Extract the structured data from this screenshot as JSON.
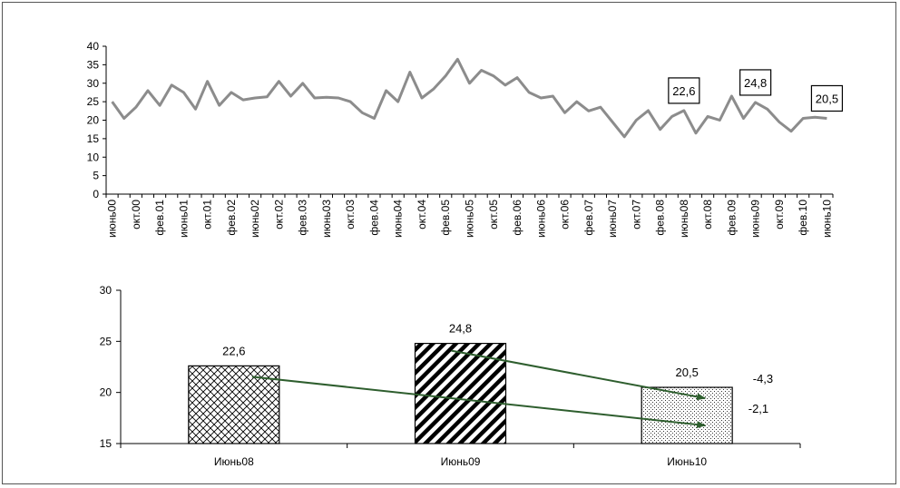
{
  "chart_data": [
    {
      "type": "line",
      "title": "",
      "xlabel": "",
      "ylabel": "",
      "ylim": [
        0,
        40
      ],
      "yticks": [
        0,
        5,
        10,
        15,
        20,
        25,
        30,
        35,
        40
      ],
      "grid": false,
      "legend": "none",
      "line_color": "#8c8c8c",
      "x_tick_labels": [
        "июнь00",
        "окт.00",
        "фев.01",
        "июнь01",
        "окт.01",
        "фев.02",
        "июнь02",
        "окт.02",
        "фев.03",
        "июнь03",
        "окт.03",
        "фев.04",
        "июнь04",
        "окт.04",
        "фев.05",
        "июнь05",
        "окт.05",
        "фев.06",
        "июнь06",
        "окт.06",
        "фев.07",
        "июнь07",
        "окт.07",
        "фев.08",
        "июнь08",
        "окт.08",
        "фев.09",
        "июнь09",
        "окт.09",
        "фев.10",
        "июнь10"
      ],
      "series": [
        {
          "values": [
            25.0,
            20.5,
            23.5,
            28.0,
            24.0,
            29.5,
            27.5,
            23.0,
            30.5,
            24.0,
            27.5,
            25.5,
            26.0,
            26.3,
            30.5,
            26.5,
            30.0,
            26.0,
            26.2,
            26.0,
            25.0,
            22.0,
            20.5,
            28.0,
            25.0,
            33.0,
            26.0,
            28.5,
            32.0,
            36.5,
            30.0,
            33.5,
            32.0,
            29.5,
            31.5,
            27.5,
            26.0,
            26.5,
            22.0,
            25.0,
            22.5,
            23.5,
            19.5,
            15.5,
            20.0,
            22.6,
            17.5,
            21.0,
            22.6,
            16.5,
            21.0,
            20.0,
            26.5,
            20.5,
            24.8,
            23.0,
            19.5,
            17.0,
            20.5,
            20.8,
            20.5
          ]
        }
      ],
      "callouts": [
        {
          "label": "22,6",
          "index": 48
        },
        {
          "label": "24,8",
          "index": 54
        },
        {
          "label": "20,5",
          "index": 60
        }
      ]
    },
    {
      "type": "bar",
      "title": "",
      "xlabel": "",
      "ylabel": "",
      "ylim": [
        15,
        30
      ],
      "yticks": [
        15,
        20,
        25,
        30
      ],
      "grid": false,
      "legend": "none",
      "categories": [
        "Июнь08",
        "Июнь09",
        "Июнь10"
      ],
      "values": [
        22.6,
        24.8,
        20.5
      ],
      "data_labels": [
        "22,6",
        "24,8",
        "20,5"
      ],
      "patterns": [
        "crosshatch",
        "diagonal-stripes",
        "dots"
      ],
      "arrow_color": "#2e5e2e",
      "annotations": [
        {
          "label": "-4,3",
          "from": "Июнь09",
          "to": "Июнь10"
        },
        {
          "label": "-2,1",
          "from": "Июнь08",
          "to": "Июнь10"
        }
      ]
    }
  ]
}
